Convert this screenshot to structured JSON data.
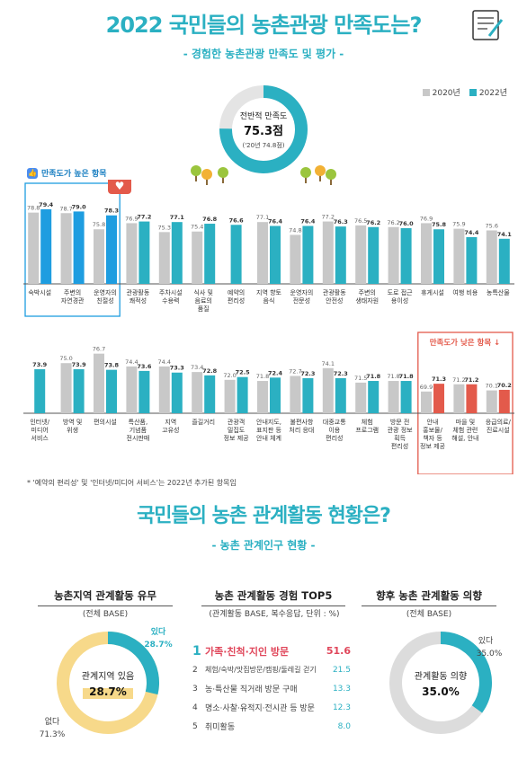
{
  "header": {
    "title": "2022 국민들의 농촌관광 만족도는?",
    "subtitle": "- 경험한 농촌관광 만족도 및 평가 -"
  },
  "legend": {
    "y2020": "2020년",
    "y2022": "2022년"
  },
  "colors": {
    "teal": "#2bb0c2",
    "gray": "#c8c8c8",
    "red": "#e35a4b",
    "blue": "#1e9de0",
    "yellow": "#f7d98a"
  },
  "overall": {
    "label": "전반적 만족도",
    "value": "75.3점",
    "prev": "('20년 74.8점)"
  },
  "high_tag": "만족도가 높은 항목",
  "low_tag": "만족도가 낮은 항목 ↓",
  "note": "* '예약의 편리성' 및 '인터넷/미디어 서비스'는 2022년 추가된 항목임",
  "section2": {
    "title": "국민들의 농촌 관계활동 현황은?",
    "subtitle": "- 농촌 관계인구 현황 -"
  },
  "panel1": {
    "title": "농촌지역 관계활동 유무",
    "sub": "(전체 BASE)",
    "center_label": "관계지역 있음",
    "center_value": "28.7%",
    "yes_label": "있다",
    "yes_value": "28.7%",
    "no_label": "없다",
    "no_value": "71.3%"
  },
  "panel2": {
    "title": "농촌 관계활동 경험 TOP5",
    "sub": "(관계활동 BASE, 복수응답, 단위 : %)",
    "items": [
      {
        "rank": "1",
        "label": "가족·친척·지인 방문",
        "value": "51.6"
      },
      {
        "rank": "2",
        "label": "체험/숙박/맛집방문/캠핑/둘레길 걷기",
        "value": "21.5"
      },
      {
        "rank": "3",
        "label": "농·특산물 직거래 방문 구매",
        "value": "13.3"
      },
      {
        "rank": "4",
        "label": "명소·사찰·유적지·전시관 등 방문",
        "value": "12.3"
      },
      {
        "rank": "5",
        "label": "취미활동",
        "value": "8.0"
      }
    ]
  },
  "panel3": {
    "title": "향후 농촌 관계활동 의향",
    "sub": "(전체 BASE)",
    "center_label": "관계활동 의향",
    "center_value": "35.0%",
    "yes_label": "있다",
    "yes_value": "35.0%"
  },
  "chart_data": [
    {
      "type": "gauge",
      "title": "전반적 만족도",
      "value": 75.3,
      "max": 100
    },
    {
      "type": "bar",
      "series": [
        {
          "name": "2020년",
          "values": [
            78.8,
            78.7,
            75.8,
            76.9,
            75.3,
            75.4,
            null,
            77.1,
            74.8,
            77.2,
            76.5,
            76.2,
            76.9,
            75.9,
            75.6
          ]
        },
        {
          "name": "2022년",
          "values": [
            79.4,
            79.0,
            78.3,
            77.2,
            77.1,
            76.8,
            76.6,
            76.4,
            76.4,
            76.3,
            76.2,
            76.0,
            75.8,
            74.4,
            74.1
          ]
        }
      ],
      "categories": [
        "숙박시설",
        "주변의\n자연경관",
        "운영자의\n친절성",
        "관광활동\n쾌적성",
        "주차시설\n수용력",
        "식사 및\n음료의\n품질",
        "예약의\n편리성",
        "지역 향토\n음식",
        "운영자의\n전문성",
        "관광활동\n안전성",
        "주변의\n생태자원",
        "도로 접근\n용이성",
        "휴게시설",
        "여행 비용",
        "농특산물"
      ],
      "highlight_high": [
        0,
        1,
        2
      ]
    },
    {
      "type": "bar",
      "series": [
        {
          "name": "2020년",
          "values": [
            null,
            75.0,
            76.7,
            74.4,
            74.4,
            73.4,
            72.0,
            71.8,
            72.7,
            74.1,
            71.5,
            71.8,
            69.9,
            71.2,
            70.1
          ]
        },
        {
          "name": "2022년",
          "values": [
            73.9,
            73.9,
            73.8,
            73.6,
            73.3,
            72.8,
            72.5,
            72.4,
            72.3,
            72.3,
            71.8,
            71.8,
            71.3,
            71.2,
            70.2
          ]
        }
      ],
      "categories": [
        "인터넷/\n미디어\n서비스",
        "방역 및\n위생",
        "편의시설",
        "특산품,\n기념품\n전시판매",
        "지역\n고유성",
        "즐길거리",
        "관광객\n밀집도\n정보 제공",
        "안내지도,\n표지판 등\n안내 체계",
        "불편사항\n처리 응대",
        "대중교통\n이용\n편리성",
        "체험\n프로그램",
        "방문 전\n관광 정보\n획득\n편리성",
        "안내\n홍보물/\n책자 등\n정보 제공",
        "마을 및\n체험 관련\n해설, 안내",
        "응급의료/\n진료시설"
      ],
      "highlight_low": [
        12,
        13,
        14
      ]
    },
    {
      "type": "pie",
      "title": "농촌지역 관계활동 유무",
      "labels": [
        "있다",
        "없다"
      ],
      "values": [
        28.7,
        71.3
      ]
    },
    {
      "type": "pie",
      "title": "향후 농촌 관계활동 의향",
      "labels": [
        "있다"
      ],
      "values": [
        35.0
      ]
    }
  ]
}
